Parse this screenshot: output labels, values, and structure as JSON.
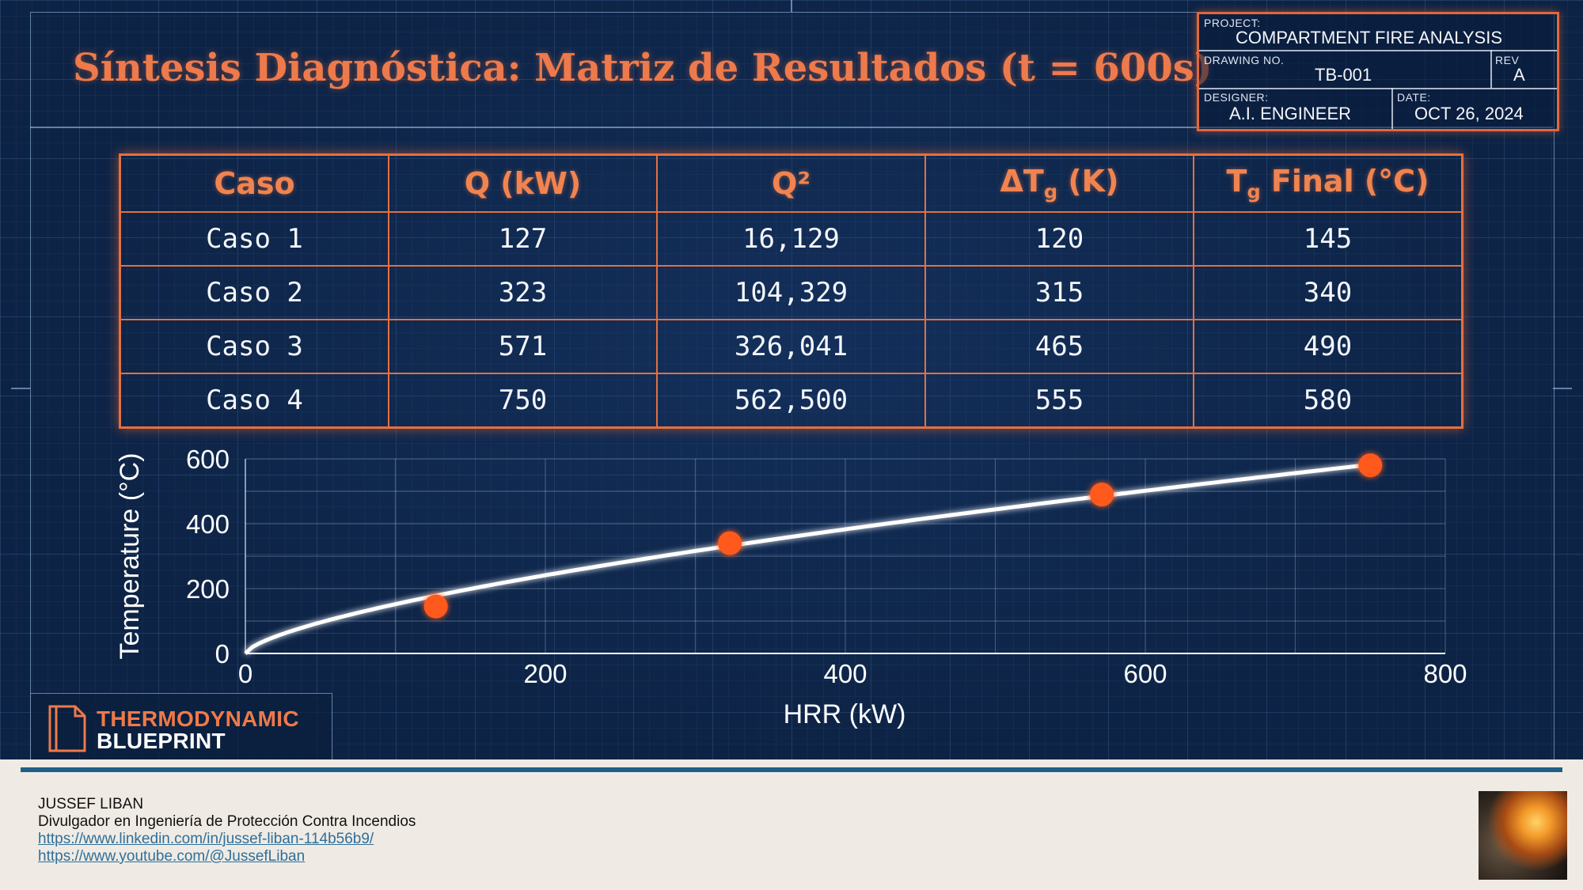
{
  "slide": {
    "title": "Síntesis Diagnóstica: Matriz de Resultados (t = 600s)"
  },
  "title_block": {
    "project_label": "PROJECT:",
    "project_value": "COMPARTMENT FIRE ANALYSIS",
    "drawing_label": "DRAWING NO.",
    "drawing_value": "TB-001",
    "rev_label": "REV",
    "rev_value": "A",
    "designer_label": "DESIGNER:",
    "designer_value": "A.I. ENGINEER",
    "date_label": "DATE:",
    "date_value": "OCT 26, 2024"
  },
  "table": {
    "headers": [
      "Caso",
      "Q (kW)",
      "Q²",
      "ΔTg (K)",
      "Tg Final (°C)"
    ],
    "rows": [
      [
        "Caso 1",
        "127",
        "16,129",
        "120",
        "145"
      ],
      [
        "Caso 2",
        "323",
        "104,329",
        "315",
        "340"
      ],
      [
        "Caso 3",
        "571",
        "326,041",
        "465",
        "490"
      ],
      [
        "Caso 4",
        "750",
        "562,500",
        "555",
        "580"
      ]
    ]
  },
  "chart_data": {
    "type": "line",
    "title": "",
    "xlabel": "HRR (kW)",
    "ylabel": "Temperature (°C)",
    "xlim": [
      0,
      800
    ],
    "ylim": [
      0,
      600
    ],
    "x_ticks": [
      0,
      200,
      400,
      600,
      800
    ],
    "y_ticks": [
      0,
      200,
      400,
      600
    ],
    "grid": true,
    "curve_exponent": 0.6667,
    "curve_coefficient": 7.05,
    "points": [
      {
        "x": 127,
        "y": 145
      },
      {
        "x": 323,
        "y": 340
      },
      {
        "x": 571,
        "y": 490
      },
      {
        "x": 750,
        "y": 580
      }
    ],
    "colors": {
      "line": "#ffffff",
      "marker": "#ff5a1f"
    }
  },
  "brand": {
    "line1": "THERMODYNAMIC",
    "line2": "BLUEPRINT",
    "accent": "#ef7a48"
  },
  "footer": {
    "name": "JUSSEF LIBAN",
    "role": "Divulgador en Ingeniería de Protección Contra Incendios",
    "link1": "https://www.linkedin.com/in/jussef-liban-114b56b9/",
    "link2": "https://www.youtube.com/@JussefLiban"
  }
}
